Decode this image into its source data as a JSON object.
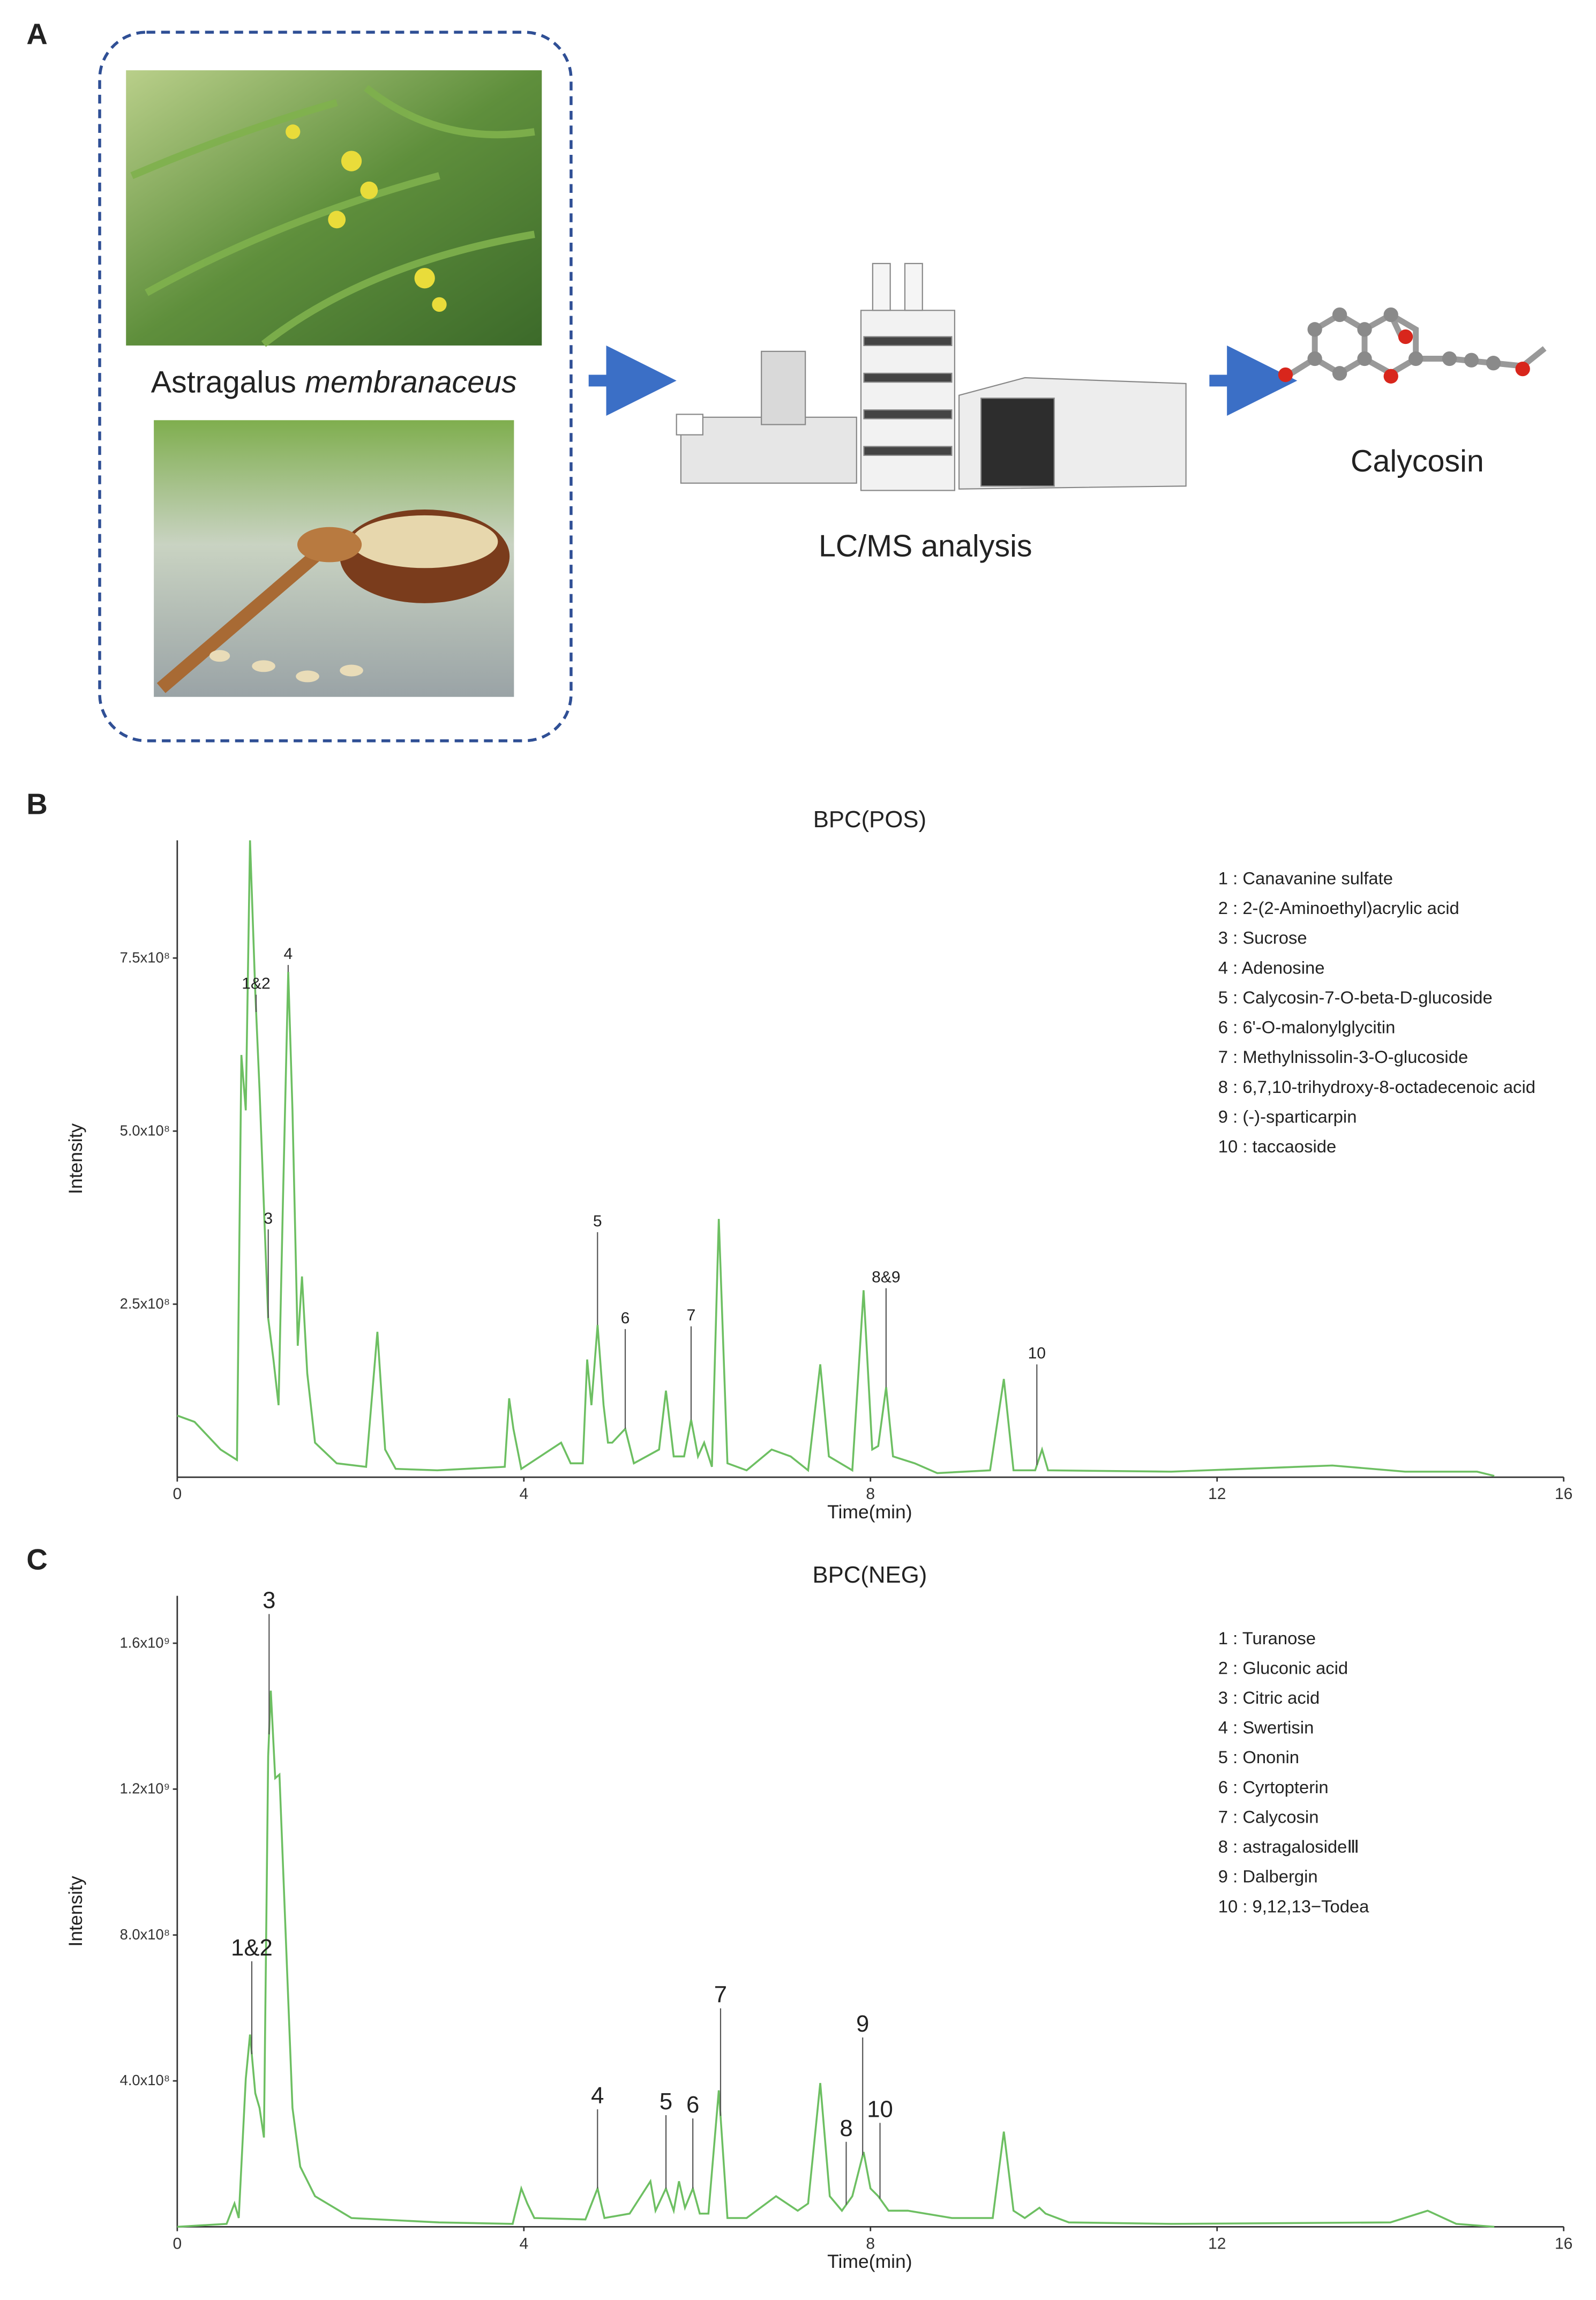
{
  "panel_a": {
    "label": "A",
    "genus": "Astragalus",
    "species": "membranaceus",
    "method": "LC/MS analysis",
    "compound": "Calycosin"
  },
  "chart_data": [
    {
      "type": "line",
      "panel": "B",
      "title": "BPC(POS)",
      "ylabel": "Intensity",
      "xlabel": "Time(min)",
      "color": "#6dbf62",
      "xlim": [
        0,
        16
      ],
      "xticks": [
        0,
        4,
        8,
        12,
        16
      ],
      "ylim": [
        0,
        920000000.0
      ],
      "yticks": [
        {
          "value": 250000000.0,
          "label": "2.5x10⁸"
        },
        {
          "value": 500000000.0,
          "label": "5.0x10⁸"
        },
        {
          "value": 750000000.0,
          "label": "7.5x10⁸"
        }
      ],
      "x": [
        0,
        0.2,
        0.5,
        0.69,
        0.74,
        0.79,
        0.84,
        0.9,
        0.95,
        1.0,
        1.05,
        1.11,
        1.17,
        1.22,
        1.28,
        1.33,
        1.39,
        1.44,
        1.5,
        1.59,
        1.84,
        2.18,
        2.31,
        2.4,
        2.52,
        3.0,
        3.78,
        3.83,
        3.88,
        3.97,
        4.43,
        4.54,
        4.68,
        4.73,
        4.78,
        4.85,
        4.92,
        4.97,
        5.02,
        5.17,
        5.27,
        5.56,
        5.64,
        5.73,
        5.85,
        5.93,
        6.01,
        6.08,
        6.17,
        6.25,
        6.35,
        6.57,
        6.86,
        7.08,
        7.28,
        7.42,
        7.52,
        7.79,
        7.92,
        8.02,
        8.09,
        8.18,
        8.26,
        8.51,
        8.77,
        9.38,
        9.54,
        9.65,
        9.9,
        9.98,
        10.05,
        11.47,
        13.33,
        14.17,
        15.0,
        15.2
      ],
      "values": [
        89000000.0,
        80000000.0,
        40000000.0,
        25000000.0,
        610000000.0,
        530000000.0,
        920000000.0,
        700000000.0,
        560000000.0,
        390000000.0,
        230000000.0,
        170000000.0,
        104000000.0,
        400000000.0,
        730000000.0,
        530000000.0,
        190000000.0,
        290000000.0,
        150000000.0,
        50000000.0,
        20000000.0,
        15000000.0,
        210000000.0,
        40000000.0,
        12000000.0,
        10000000.0,
        15000000.0,
        114000000.0,
        70000000.0,
        12000000.0,
        50000000.0,
        20000000.0,
        20000000.0,
        170000000.0,
        104000000.0,
        220000000.0,
        104000000.0,
        50000000.0,
        50000000.0,
        70000000.0,
        20000000.0,
        40000000.0,
        125000000.0,
        30000000.0,
        30000000.0,
        83000000.0,
        30000000.0,
        50000000.0,
        15000000.0,
        373000000.0,
        20000000.0,
        10000000.0,
        40000000.0,
        30000000.0,
        10000000.0,
        163000000.0,
        30000000.0,
        10000000.0,
        270000000.0,
        40000000.0,
        45000000.0,
        130000000.0,
        30000000.0,
        20000000.0,
        6000000.0,
        10000000.0,
        142000000.0,
        10000000.0,
        10000000.0,
        40000000.0,
        10000000.0,
        8000000.0,
        17000000.0,
        8000000.0,
        8000000.0,
        2000000.0
      ],
      "annotations": [
        {
          "text": "1&2",
          "x": 0.91,
          "y": 697000000.0
        },
        {
          "text": "4",
          "x": 1.28,
          "y": 740000000.0
        },
        {
          "text": "3",
          "x": 1.05,
          "y": 358000000.0
        },
        {
          "text": "5",
          "x": 4.85,
          "y": 354000000.0
        },
        {
          "text": "6",
          "x": 5.17,
          "y": 214000000.0
        },
        {
          "text": "7",
          "x": 5.93,
          "y": 218000000.0
        },
        {
          "text": "8&9",
          "x": 8.18,
          "y": 273000000.0
        },
        {
          "text": "10",
          "x": 9.92,
          "y": 163000000.0
        }
      ],
      "compounds": [
        "1 : Canavanine sulfate",
        "2 : 2-(2-Aminoethyl)acrylic acid",
        "3 : Sucrose",
        "4 : Adenosine",
        "5 : Calycosin-7-O-beta-D-glucoside",
        "6 : 6'-O-malonylglycitin",
        "7 : Methylnissolin-3-O-glucoside",
        "8 : 6,7,10-trihydroxy-8-octadecenoic acid",
        "9 : (-)-sparticarpin",
        "10 : taccaoside"
      ]
    },
    {
      "type": "line",
      "panel": "C",
      "title": "BPC(NEG)",
      "ylabel": "Intensity",
      "xlabel": "Time(min)",
      "color": "#6dbf62",
      "xlim": [
        0,
        16
      ],
      "xticks": [
        0,
        4,
        8,
        12,
        16
      ],
      "ylim": [
        0,
        1730000000.0
      ],
      "yticks": [
        {
          "value": 400000000.0,
          "label": "4.0x10⁸"
        },
        {
          "value": 800000000.0,
          "label": "8.0x10⁸"
        },
        {
          "value": 1200000000.0,
          "label": "1.2x10⁹"
        },
        {
          "value": 1600000000.0,
          "label": "1.6x10⁹"
        }
      ],
      "x": [
        0,
        0.57,
        0.66,
        0.71,
        0.79,
        0.84,
        0.9,
        0.95,
        1.0,
        1.05,
        1.08,
        1.13,
        1.18,
        1.25,
        1.33,
        1.42,
        1.59,
        2.01,
        3.02,
        3.87,
        3.97,
        4.04,
        4.12,
        4.71,
        4.85,
        4.93,
        5.22,
        5.46,
        5.52,
        5.64,
        5.73,
        5.79,
        5.86,
        5.95,
        6.03,
        6.13,
        6.25,
        6.35,
        6.57,
        6.91,
        7.16,
        7.28,
        7.42,
        7.53,
        7.67,
        7.79,
        7.92,
        8.0,
        8.09,
        8.21,
        8.43,
        8.94,
        9.41,
        9.54,
        9.65,
        9.78,
        9.95,
        10.02,
        10.29,
        11.47,
        14.0,
        14.43,
        14.76,
        15.2
      ],
      "values": [
        0,
        8000000.0,
        64000000.0,
        24000000.0,
        406000000.0,
        527000000.0,
        366000000.0,
        326000000.0,
        245000000.0,
        1290000000.0,
        1470000000.0,
        1230000000.0,
        1240000000.0,
        808000000.0,
        326000000.0,
        165000000.0,
        84000000.0,
        24000000.0,
        12000000.0,
        8000000.0,
        105000000.0,
        64000000.0,
        24000000.0,
        20000000.0,
        105000000.0,
        24000000.0,
        36000000.0,
        125000000.0,
        44000000.0,
        105000000.0,
        44000000.0,
        125000000.0,
        52000000.0,
        105000000.0,
        36000000.0,
        36000000.0,
        374000000.0,
        24000000.0,
        24000000.0,
        84000000.0,
        44000000.0,
        64000000.0,
        394000000.0,
        84000000.0,
        44000000.0,
        84000000.0,
        205000000.0,
        105000000.0,
        84000000.0,
        44000000.0,
        44000000.0,
        24000000.0,
        24000000.0,
        261000000.0,
        44000000.0,
        24000000.0,
        52000000.0,
        36000000.0,
        12000000.0,
        8000000.0,
        12000000.0,
        44000000.0,
        8000000.0,
        0
      ],
      "annotations": [
        {
          "text": "1&2",
          "x": 0.86,
          "y": 728000000.0
        },
        {
          "text": "3",
          "x": 1.06,
          "y": 1680000000.0
        },
        {
          "text": "4",
          "x": 4.85,
          "y": 322000000.0
        },
        {
          "text": "5",
          "x": 5.64,
          "y": 306000000.0
        },
        {
          "text": "6",
          "x": 5.95,
          "y": 297000000.0
        },
        {
          "text": "7",
          "x": 6.27,
          "y": 599000000.0
        },
        {
          "text": "8",
          "x": 7.72,
          "y": 233000000.0
        },
        {
          "text": "9",
          "x": 7.91,
          "y": 519000000.0
        },
        {
          "text": "10",
          "x": 8.11,
          "y": 285000000.0
        }
      ],
      "compounds": [
        "1 : Turanose",
        "2 : Gluconic acid",
        "3 : Citric acid",
        "4 : Swertisin",
        "5 : Ononin",
        "6 : Cyrtopterin",
        "7 : Calycosin",
        "8 : astragalosideⅢ",
        "9 : Dalbergin",
        "10 : 9,12,13−Todea"
      ]
    }
  ]
}
